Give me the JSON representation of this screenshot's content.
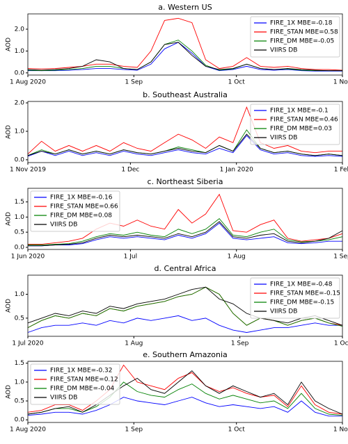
{
  "chart_data": [
    {
      "type": "line",
      "title": "a. Western US",
      "ylabel": "AOD",
      "legend": "upper right",
      "x": [
        "2020-08-01",
        "2020-08-05",
        "2020-08-09",
        "2020-08-13",
        "2020-08-17",
        "2020-08-21",
        "2020-08-25",
        "2020-08-29",
        "2020-09-02",
        "2020-09-06",
        "2020-09-10",
        "2020-09-14",
        "2020-09-18",
        "2020-09-22",
        "2020-09-26",
        "2020-09-30",
        "2020-10-04",
        "2020-10-08",
        "2020-10-12",
        "2020-10-16",
        "2020-10-20",
        "2020-10-24",
        "2020-10-28",
        "2020-11-01"
      ],
      "xlim": [
        "2020-08-01",
        "2020-11-01"
      ],
      "xticks": [
        {
          "value": "2020-08-01",
          "label": "1 Aug 2020"
        },
        {
          "value": "2020-09-01",
          "label": "1 Sep"
        },
        {
          "value": "2020-10-01",
          "label": "1 Oct"
        },
        {
          "value": "2020-11-01",
          "label": "1 Nov"
        }
      ],
      "ylim": [
        -0.1,
        2.7
      ],
      "yticks": [
        {
          "value": 0,
          "label": "0.0"
        },
        {
          "value": 1,
          "label": "1.0"
        },
        {
          "value": 2,
          "label": "2.0"
        }
      ],
      "series": [
        {
          "name": "FIRE_1X MBE=-0.18",
          "color": "#0000ff",
          "values": [
            0.1,
            0.1,
            0.1,
            0.12,
            0.15,
            0.2,
            0.2,
            0.15,
            0.12,
            0.4,
            1.1,
            1.4,
            0.9,
            0.3,
            0.1,
            0.15,
            0.3,
            0.15,
            0.12,
            0.15,
            0.1,
            0.08,
            0.08,
            0.08
          ]
        },
        {
          "name": "FIRE_STAN MBE=0.58",
          "color": "#ff0000",
          "values": [
            0.2,
            0.18,
            0.2,
            0.25,
            0.3,
            0.4,
            0.4,
            0.3,
            0.25,
            1.0,
            2.4,
            2.5,
            2.3,
            0.6,
            0.2,
            0.3,
            0.7,
            0.3,
            0.25,
            0.3,
            0.2,
            0.15,
            0.15,
            0.12
          ]
        },
        {
          "name": "FIRE_DM MBE=-0.05",
          "color": "#008000",
          "values": [
            0.12,
            0.1,
            0.12,
            0.15,
            0.2,
            0.3,
            0.3,
            0.2,
            0.15,
            0.5,
            1.3,
            1.5,
            1.0,
            0.35,
            0.12,
            0.18,
            0.4,
            0.2,
            0.15,
            0.18,
            0.12,
            0.1,
            0.1,
            0.1
          ]
        },
        {
          "name": "VIIRS DB",
          "color": "#000000",
          "values": [
            0.15,
            0.12,
            0.15,
            0.2,
            0.3,
            0.6,
            0.5,
            0.2,
            0.15,
            0.5,
            1.3,
            1.4,
            0.8,
            0.3,
            0.15,
            0.2,
            0.4,
            0.2,
            0.15,
            0.2,
            0.15,
            0.12,
            0.1,
            0.1
          ]
        }
      ]
    },
    {
      "type": "line",
      "title": "b. Southeast Australia",
      "ylabel": "AOD",
      "legend": "upper right",
      "x": [
        "2019-11-01",
        "2019-11-05",
        "2019-11-09",
        "2019-11-13",
        "2019-11-17",
        "2019-11-21",
        "2019-11-25",
        "2019-11-29",
        "2019-12-03",
        "2019-12-07",
        "2019-12-11",
        "2019-12-15",
        "2019-12-19",
        "2019-12-23",
        "2019-12-27",
        "2019-12-31",
        "2020-01-04",
        "2020-01-08",
        "2020-01-12",
        "2020-01-16",
        "2020-01-20",
        "2020-01-24",
        "2020-01-28",
        "2020-02-01"
      ],
      "xlim": [
        "2019-11-01",
        "2020-02-01"
      ],
      "xticks": [
        {
          "value": "2019-11-01",
          "label": "1 Nov 2019"
        },
        {
          "value": "2019-12-01",
          "label": "1 Dec"
        },
        {
          "value": "2020-01-01",
          "label": "1 Jan 2020"
        },
        {
          "value": "2020-02-01",
          "label": "1 Feb"
        }
      ],
      "ylim": [
        -0.1,
        2.05
      ],
      "yticks": [
        {
          "value": 0,
          "label": "0.0"
        },
        {
          "value": 1,
          "label": "1.0"
        },
        {
          "value": 2,
          "label": "2.0"
        }
      ],
      "series": [
        {
          "name": "FIRE_1X MBE=-0.1",
          "color": "#0000ff",
          "values": [
            0.12,
            0.3,
            0.15,
            0.3,
            0.15,
            0.25,
            0.15,
            0.3,
            0.2,
            0.15,
            0.25,
            0.35,
            0.25,
            0.2,
            0.4,
            0.25,
            0.85,
            0.35,
            0.2,
            0.25,
            0.15,
            0.12,
            0.15,
            0.12
          ]
        },
        {
          "name": "FIRE_STAN MBE=0.46",
          "color": "#ff0000",
          "values": [
            0.2,
            0.65,
            0.3,
            0.5,
            0.3,
            0.5,
            0.3,
            0.6,
            0.4,
            0.3,
            0.6,
            0.9,
            0.7,
            0.4,
            0.8,
            0.6,
            1.85,
            0.6,
            0.4,
            0.5,
            0.3,
            0.25,
            0.3,
            0.3
          ]
        },
        {
          "name": "FIRE_DM MBE=0.03",
          "color": "#008000",
          "values": [
            0.15,
            0.35,
            0.2,
            0.35,
            0.2,
            0.3,
            0.2,
            0.35,
            0.25,
            0.2,
            0.3,
            0.45,
            0.35,
            0.25,
            0.5,
            0.3,
            1.05,
            0.4,
            0.25,
            0.3,
            0.2,
            0.15,
            0.2,
            0.15
          ]
        },
        {
          "name": "VIIRS DB",
          "color": "#000000",
          "values": [
            0.15,
            0.3,
            0.2,
            0.35,
            0.2,
            0.3,
            0.2,
            0.35,
            0.25,
            0.2,
            0.3,
            0.4,
            0.3,
            0.25,
            0.5,
            0.3,
            0.9,
            0.4,
            0.25,
            0.3,
            0.2,
            0.15,
            0.2,
            0.15
          ]
        }
      ]
    },
    {
      "type": "line",
      "title": "c. Northeast Siberia",
      "ylabel": "AOD",
      "legend": "upper left",
      "x": [
        "2020-06-01",
        "2020-06-05",
        "2020-06-09",
        "2020-06-13",
        "2020-06-17",
        "2020-06-21",
        "2020-06-25",
        "2020-06-29",
        "2020-07-03",
        "2020-07-07",
        "2020-07-11",
        "2020-07-15",
        "2020-07-19",
        "2020-07-23",
        "2020-07-27",
        "2020-07-31",
        "2020-08-04",
        "2020-08-08",
        "2020-08-12",
        "2020-08-16",
        "2020-08-20",
        "2020-08-24",
        "2020-08-28",
        "2020-09-01"
      ],
      "xlim": [
        "2020-06-01",
        "2020-09-01"
      ],
      "xticks": [
        {
          "value": "2020-06-01",
          "label": "1 Jun 2020"
        },
        {
          "value": "2020-07-01",
          "label": "1 Jul"
        },
        {
          "value": "2020-08-01",
          "label": "1 Aug"
        },
        {
          "value": "2020-09-01",
          "label": "1 Sep"
        }
      ],
      "ylim": [
        -0.07,
        1.95
      ],
      "yticks": [
        {
          "value": 0,
          "label": "0.0"
        },
        {
          "value": 0.5,
          "label": "0.5"
        },
        {
          "value": 1,
          "label": "1.0"
        },
        {
          "value": 1.5,
          "label": "1.5"
        }
      ],
      "series": [
        {
          "name": "FIRE_1X MBE=-0.16",
          "color": "#0000ff",
          "values": [
            0.05,
            0.05,
            0.08,
            0.08,
            0.12,
            0.25,
            0.35,
            0.3,
            0.35,
            0.3,
            0.25,
            0.4,
            0.3,
            0.45,
            0.8,
            0.3,
            0.25,
            0.3,
            0.35,
            0.15,
            0.12,
            0.15,
            0.2,
            0.2
          ]
        },
        {
          "name": "FIRE_STAN MBE=0.66",
          "color": "#ff0000",
          "values": [
            0.1,
            0.1,
            0.15,
            0.2,
            0.3,
            0.6,
            0.8,
            0.7,
            0.9,
            0.7,
            0.6,
            1.25,
            0.8,
            1.1,
            1.75,
            0.55,
            0.5,
            0.75,
            0.9,
            0.3,
            0.2,
            0.25,
            0.3,
            0.45
          ]
        },
        {
          "name": "FIRE_DM MBE=0.08",
          "color": "#008000",
          "values": [
            0.08,
            0.08,
            0.1,
            0.12,
            0.2,
            0.35,
            0.45,
            0.4,
            0.5,
            0.4,
            0.35,
            0.6,
            0.45,
            0.6,
            0.95,
            0.4,
            0.35,
            0.5,
            0.6,
            0.25,
            0.18,
            0.2,
            0.25,
            0.35
          ]
        },
        {
          "name": "VIIRS DB",
          "color": "#000000",
          "values": [
            0.05,
            0.05,
            0.08,
            0.1,
            0.15,
            0.3,
            0.4,
            0.35,
            0.4,
            0.35,
            0.3,
            0.45,
            0.35,
            0.5,
            0.85,
            0.35,
            0.3,
            0.4,
            0.45,
            0.2,
            0.15,
            0.2,
            0.3,
            0.55
          ]
        }
      ]
    },
    {
      "type": "line",
      "title": "d. Central Africa",
      "ylabel": "AOD",
      "legend": "upper right",
      "x": [
        "2020-07-01",
        "2020-07-05",
        "2020-07-09",
        "2020-07-13",
        "2020-07-17",
        "2020-07-21",
        "2020-07-25",
        "2020-07-29",
        "2020-08-02",
        "2020-08-06",
        "2020-08-10",
        "2020-08-14",
        "2020-08-18",
        "2020-08-22",
        "2020-08-26",
        "2020-08-30",
        "2020-09-03",
        "2020-09-07",
        "2020-09-11",
        "2020-09-15",
        "2020-09-19",
        "2020-09-23",
        "2020-09-27",
        "2020-10-01"
      ],
      "xlim": [
        "2020-07-01",
        "2020-10-01"
      ],
      "xticks": [
        {
          "value": "2020-07-01",
          "label": "1 Jul 2020"
        },
        {
          "value": "2020-08-01",
          "label": "1 Aug"
        },
        {
          "value": "2020-09-01",
          "label": "1 Sep"
        },
        {
          "value": "2020-10-01",
          "label": "1 Oct"
        }
      ],
      "ylim": [
        0.12,
        1.4
      ],
      "yticks": [
        0.5,
        {
          "value": 1,
          "label": "1.0"
        }
      ],
      "series": [
        {
          "name": "FIRE_1X MBE=-0.48",
          "color": "#0000ff",
          "values": [
            0.2,
            0.3,
            0.35,
            0.35,
            0.4,
            0.35,
            0.45,
            0.4,
            0.5,
            0.45,
            0.5,
            0.55,
            0.45,
            0.5,
            0.35,
            0.25,
            0.2,
            0.25,
            0.3,
            0.3,
            0.35,
            0.4,
            0.35,
            0.35
          ]
        },
        {
          "name": "FIRE_STAN MBE=-0.15",
          "color": "#ff0000",
          "values": [
            0.3,
            0.45,
            0.55,
            0.5,
            0.6,
            0.55,
            0.7,
            0.65,
            0.75,
            0.8,
            0.85,
            0.95,
            1.0,
            1.15,
            1.0,
            0.6,
            0.35,
            0.5,
            0.45,
            0.35,
            0.45,
            0.5,
            0.4,
            0.35
          ]
        },
        {
          "name": "FIRE_DM MBE=-0.15",
          "color": "#008000",
          "values": [
            0.3,
            0.45,
            0.55,
            0.5,
            0.6,
            0.55,
            0.7,
            0.65,
            0.75,
            0.8,
            0.85,
            0.95,
            1.0,
            1.15,
            1.0,
            0.6,
            0.35,
            0.5,
            0.45,
            0.35,
            0.45,
            0.5,
            0.4,
            0.33
          ]
        },
        {
          "name": "VIIRS DB",
          "color": "#000000",
          "values": [
            0.4,
            0.5,
            0.6,
            0.55,
            0.65,
            0.6,
            0.75,
            0.7,
            0.8,
            0.85,
            0.9,
            1.0,
            1.1,
            1.15,
            0.9,
            0.8,
            0.6,
            0.5,
            0.45,
            0.4,
            0.5,
            0.55,
            0.45,
            0.35
          ]
        }
      ]
    },
    {
      "type": "line",
      "title": "e. Southern Amazonia",
      "ylabel": "AOD",
      "legend": "upper left",
      "x": [
        "2020-08-01",
        "2020-08-05",
        "2020-08-09",
        "2020-08-13",
        "2020-08-17",
        "2020-08-21",
        "2020-08-25",
        "2020-08-29",
        "2020-09-02",
        "2020-09-06",
        "2020-09-10",
        "2020-09-14",
        "2020-09-18",
        "2020-09-22",
        "2020-09-26",
        "2020-09-30",
        "2020-10-04",
        "2020-10-08",
        "2020-10-12",
        "2020-10-16",
        "2020-10-20",
        "2020-10-24",
        "2020-10-28",
        "2020-11-01"
      ],
      "xlim": [
        "2020-08-01",
        "2020-11-01"
      ],
      "xticks": [
        {
          "value": "2020-08-01",
          "label": "1 Aug 2020"
        },
        {
          "value": "2020-09-01",
          "label": "1 Sep"
        },
        {
          "value": "2020-10-01",
          "label": "1 Oct"
        },
        {
          "value": "2020-11-01",
          "label": "1 Nov"
        }
      ],
      "ylim": [
        -0.07,
        1.55
      ],
      "yticks": [
        {
          "value": 0,
          "label": "0.0"
        },
        {
          "value": 0.5,
          "label": "0.5"
        },
        {
          "value": 1,
          "label": "1.0"
        },
        {
          "value": 1.5,
          "label": "1.5"
        }
      ],
      "series": [
        {
          "name": "FIRE_1X MBE=-0.32",
          "color": "#0000ff",
          "values": [
            0.12,
            0.15,
            0.2,
            0.2,
            0.15,
            0.25,
            0.4,
            0.6,
            0.5,
            0.45,
            0.4,
            0.5,
            0.6,
            0.45,
            0.35,
            0.4,
            0.35,
            0.3,
            0.35,
            0.2,
            0.5,
            0.2,
            0.1,
            0.1
          ]
        },
        {
          "name": "FIRE_STAN MBE=0.12",
          "color": "#ff0000",
          "values": [
            0.2,
            0.25,
            0.4,
            0.4,
            0.25,
            0.5,
            0.8,
            1.45,
            1.0,
            0.9,
            0.8,
            1.1,
            1.25,
            0.9,
            0.75,
            0.85,
            0.7,
            0.6,
            0.65,
            0.35,
            0.9,
            0.4,
            0.2,
            0.15
          ]
        },
        {
          "name": "FIRE_DM MBE=-0.04",
          "color": "#008000",
          "values": [
            0.15,
            0.2,
            0.3,
            0.3,
            0.2,
            0.35,
            0.6,
            1.0,
            0.75,
            0.65,
            0.6,
            0.8,
            0.95,
            0.7,
            0.55,
            0.65,
            0.55,
            0.45,
            0.5,
            0.3,
            0.7,
            0.3,
            0.15,
            0.12
          ]
        },
        {
          "name": "VIIRS DB",
          "color": "#000000",
          "values": [
            0.15,
            0.2,
            0.3,
            0.35,
            0.2,
            0.4,
            0.65,
            0.9,
            1.1,
            0.8,
            0.7,
            1.0,
            1.3,
            0.9,
            0.7,
            0.9,
            0.75,
            0.6,
            0.7,
            0.4,
            1.0,
            0.5,
            0.3,
            0.15
          ]
        }
      ]
    }
  ]
}
